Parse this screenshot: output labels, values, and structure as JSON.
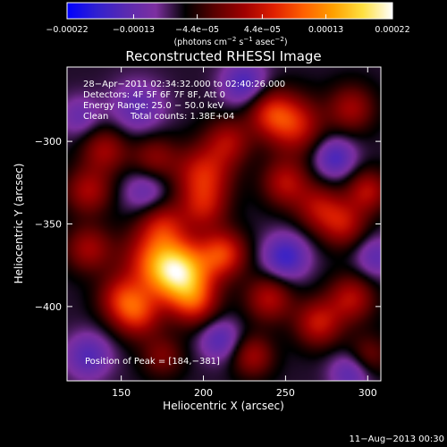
{
  "chart_data": {
    "type": "heatmap",
    "title": "Reconstructed RHESSI Image",
    "xlabel": "Heliocentric X (arcsec)",
    "ylabel": "Heliocentric Y (arcsec)",
    "xlim": [
      117,
      308
    ],
    "ylim": [
      -445,
      -255
    ],
    "x_ticks": [
      150,
      200,
      250,
      300
    ],
    "y_ticks": [
      -300,
      -350,
      -400
    ],
    "x_tick_labels": [
      "150",
      "200",
      "250",
      "300"
    ],
    "y_tick_labels": [
      "−300",
      "−350",
      "−400"
    ],
    "colorbar": {
      "min": -0.00022,
      "max": 0.00022,
      "ticks": [
        -0.00022,
        -0.00013,
        -4.4e-05,
        4.4e-05,
        0.00013,
        0.00022
      ],
      "tick_labels": [
        "−0.00022",
        "−0.00013",
        "−4.4e−05",
        "4.4e−05",
        "0.00013",
        "0.00022"
      ],
      "unit_parts": [
        "(photons cm",
        "−2",
        " s",
        "−1",
        " asec",
        "−2",
        ")"
      ],
      "colormap": [
        "#0000ff",
        "#3020d0",
        "#5a2ab0",
        "#7d2fa0",
        "#000000",
        "#5a0000",
        "#a00000",
        "#e02000",
        "#ff6000",
        "#ffa000",
        "#ffe040",
        "#ffffff"
      ]
    },
    "annotations": {
      "time_range": "28−Apr−2011 02:34:32.000 to 02:40:26.000",
      "detectors": "Detectors: 4F 5F 6F 7F 8F, Att 0",
      "energy_range": "Energy Range: 25.0 − 50.0 keV",
      "method": "Clean",
      "total_counts": "Total counts: 1.38E+04",
      "peak": "Position of Peak = [184,−381]"
    },
    "peak_position": [
      184,
      -381
    ],
    "intensity_sources": [
      {
        "x": 186,
        "y": -380,
        "amp": 1.0,
        "sigma": 13
      },
      {
        "x": 170,
        "y": -372,
        "amp": 0.55,
        "sigma": 14
      },
      {
        "x": 212,
        "y": -368,
        "amp": 0.6,
        "sigma": 10
      },
      {
        "x": 195,
        "y": -398,
        "amp": 0.45,
        "sigma": 10
      },
      {
        "x": 150,
        "y": -395,
        "amp": 0.45,
        "sigma": 10
      },
      {
        "x": 160,
        "y": -405,
        "amp": 0.5,
        "sigma": 10
      },
      {
        "x": 175,
        "y": -350,
        "amp": 0.4,
        "sigma": 10
      },
      {
        "x": 130,
        "y": -365,
        "amp": 0.4,
        "sigma": 10
      },
      {
        "x": 130,
        "y": -330,
        "amp": 0.42,
        "sigma": 10
      },
      {
        "x": 140,
        "y": -305,
        "amp": 0.4,
        "sigma": 10
      },
      {
        "x": 170,
        "y": -310,
        "amp": 0.35,
        "sigma": 10
      },
      {
        "x": 200,
        "y": -320,
        "amp": 0.55,
        "sigma": 12
      },
      {
        "x": 200,
        "y": -340,
        "amp": 0.4,
        "sigma": 10
      },
      {
        "x": 215,
        "y": -300,
        "amp": 0.4,
        "sigma": 10
      },
      {
        "x": 255,
        "y": -290,
        "amp": 0.55,
        "sigma": 12
      },
      {
        "x": 240,
        "y": -282,
        "amp": 0.45,
        "sigma": 10
      },
      {
        "x": 290,
        "y": -280,
        "amp": 0.4,
        "sigma": 10
      },
      {
        "x": 250,
        "y": -325,
        "amp": 0.45,
        "sigma": 10
      },
      {
        "x": 270,
        "y": -340,
        "amp": 0.4,
        "sigma": 10
      },
      {
        "x": 285,
        "y": -350,
        "amp": 0.45,
        "sigma": 10
      },
      {
        "x": 300,
        "y": -330,
        "amp": 0.45,
        "sigma": 9
      },
      {
        "x": 240,
        "y": -395,
        "amp": 0.45,
        "sigma": 10
      },
      {
        "x": 270,
        "y": -410,
        "amp": 0.5,
        "sigma": 10
      },
      {
        "x": 290,
        "y": -395,
        "amp": 0.45,
        "sigma": 10
      },
      {
        "x": 230,
        "y": -430,
        "amp": 0.4,
        "sigma": 9
      },
      {
        "x": 175,
        "y": -430,
        "amp": 0.3,
        "sigma": 9
      },
      {
        "x": 300,
        "y": -430,
        "amp": 0.3,
        "sigma": 9
      },
      {
        "x": 225,
        "y": -265,
        "amp": -0.4,
        "sigma": 10
      },
      {
        "x": 160,
        "y": -280,
        "amp": -0.3,
        "sigma": 12
      },
      {
        "x": 280,
        "y": -310,
        "amp": -0.4,
        "sigma": 9
      },
      {
        "x": 250,
        "y": -370,
        "amp": -0.45,
        "sigma": 10
      },
      {
        "x": 165,
        "y": -330,
        "amp": -0.3,
        "sigma": 10
      },
      {
        "x": 130,
        "y": -430,
        "amp": -0.35,
        "sigma": 10
      },
      {
        "x": 210,
        "y": -420,
        "amp": -0.35,
        "sigma": 9
      },
      {
        "x": 290,
        "y": -440,
        "amp": -0.35,
        "sigma": 9
      },
      {
        "x": 125,
        "y": -285,
        "amp": -0.25,
        "sigma": 9
      },
      {
        "x": 305,
        "y": -370,
        "amp": -0.3,
        "sigma": 9
      }
    ]
  },
  "footer": {
    "timestamp": "11−Aug−2013 00:30"
  }
}
